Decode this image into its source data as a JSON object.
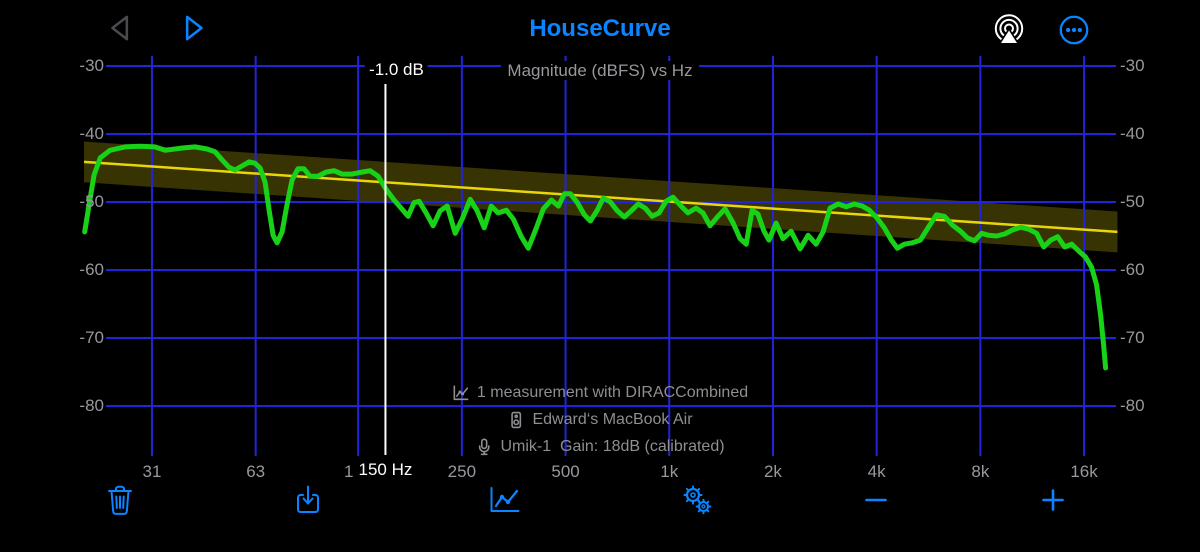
{
  "colors": {
    "accent": "#0a84ff",
    "grid": "#2323dc",
    "curve": "#18d218",
    "target": "#e8d60a",
    "band": "rgba(232,214,10,0.24)",
    "axisText": "#98989d",
    "annText": "#8e8e93",
    "cursor": "#ffffff",
    "disabled": "#4a4a4e"
  },
  "header": {
    "title": "HouseCurve",
    "left_buttons": [
      {
        "name": "previous",
        "icon": "back-triangle-icon",
        "enabled": false
      },
      {
        "name": "play",
        "icon": "play-triangle-icon",
        "enabled": true
      }
    ],
    "right_buttons": [
      {
        "name": "airplay",
        "icon": "airplay-audio-icon"
      },
      {
        "name": "more",
        "icon": "ellipsis-circle-icon"
      }
    ]
  },
  "chart": {
    "title": "Magnitude (dBFS) vs Hz",
    "cursor": {
      "hz": 150,
      "freq_label": "150 Hz",
      "value_label": "-1.0 dB"
    },
    "annotations": [
      {
        "icon": "line-chart-icon",
        "text": "1 measurement with DIRACCombined"
      },
      {
        "icon": "speaker-icon",
        "text": "Edward‘s MacBook Air"
      },
      {
        "icon": "microphone-icon",
        "text": "Umik-1  Gain: 18dB (calibrated)"
      }
    ]
  },
  "chart_data": {
    "type": "line",
    "title": "Magnitude (dBFS) vs Hz",
    "x_scale": "log",
    "x_range_hz": [
      20,
      20000
    ],
    "y_range_db": [
      -88,
      -28
    ],
    "grid": true,
    "y_ticks": [
      -30,
      -40,
      -50,
      -60,
      -70,
      -80
    ],
    "x_ticks": [
      {
        "f": 31.5,
        "label": "31"
      },
      {
        "f": 63,
        "label": "63"
      },
      {
        "f": 125,
        "label": "125"
      },
      {
        "f": 250,
        "label": "250"
      },
      {
        "f": 500,
        "label": "500"
      },
      {
        "f": 1000,
        "label": "1k"
      },
      {
        "f": 2000,
        "label": "2k"
      },
      {
        "f": 4000,
        "label": "4k"
      },
      {
        "f": 8000,
        "label": "8k"
      },
      {
        "f": 16000,
        "label": "16k"
      }
    ],
    "series": [
      {
        "name": "target",
        "color": "#e8d60a",
        "tolerance_db": 3,
        "points": [
          [
            20,
            -44.1
          ],
          [
            20000,
            -54.4
          ]
        ]
      },
      {
        "name": "measurement",
        "color": "#18d218",
        "points": [
          [
            20.1,
            -54.4
          ],
          [
            20.7,
            -50.4
          ],
          [
            21.4,
            -46.0
          ],
          [
            22.3,
            -43.5
          ],
          [
            23.8,
            -42.4
          ],
          [
            26.3,
            -41.9
          ],
          [
            29.1,
            -41.8
          ],
          [
            32.1,
            -41.9
          ],
          [
            34.4,
            -42.4
          ],
          [
            38.0,
            -42.1
          ],
          [
            42.0,
            -41.9
          ],
          [
            45.5,
            -42.2
          ],
          [
            48.0,
            -42.6
          ],
          [
            50.3,
            -43.8
          ],
          [
            52.7,
            -44.9
          ],
          [
            54.9,
            -45.3
          ],
          [
            57.5,
            -44.7
          ],
          [
            60.3,
            -44.1
          ],
          [
            62.7,
            -44.3
          ],
          [
            64.9,
            -45.0
          ],
          [
            67.1,
            -47.1
          ],
          [
            68.9,
            -51.2
          ],
          [
            70.8,
            -54.9
          ],
          [
            72.7,
            -56.0
          ],
          [
            75.2,
            -54.4
          ],
          [
            77.7,
            -50.4
          ],
          [
            80.3,
            -46.8
          ],
          [
            83.6,
            -45.1
          ],
          [
            87.0,
            -45.1
          ],
          [
            90.6,
            -46.2
          ],
          [
            95.6,
            -46.2
          ],
          [
            100.8,
            -45.6
          ],
          [
            106.4,
            -45.4
          ],
          [
            112.2,
            -45.9
          ],
          [
            120.0,
            -45.9
          ],
          [
            128.3,
            -45.6
          ],
          [
            135.4,
            -45.4
          ],
          [
            142.8,
            -46.2
          ],
          [
            150.6,
            -48.1
          ],
          [
            158.9,
            -49.7
          ],
          [
            166.5,
            -50.9
          ],
          [
            174.5,
            -52.1
          ],
          [
            181.6,
            -50.1
          ],
          [
            187.8,
            -49.9
          ],
          [
            196.8,
            -51.6
          ],
          [
            206.3,
            -53.5
          ],
          [
            216.2,
            -51.3
          ],
          [
            226.6,
            -50.6
          ],
          [
            239.1,
            -54.6
          ],
          [
            250.5,
            -52.5
          ],
          [
            264.4,
            -49.6
          ],
          [
            277.0,
            -51.3
          ],
          [
            290.3,
            -53.8
          ],
          [
            304.2,
            -50.6
          ],
          [
            318.8,
            -51.6
          ],
          [
            336.4,
            -51.2
          ],
          [
            352.5,
            -52.5
          ],
          [
            371.9,
            -55.1
          ],
          [
            389.8,
            -56.8
          ],
          [
            411.4,
            -53.8
          ],
          [
            431.1,
            -51.0
          ],
          [
            454.8,
            -49.7
          ],
          [
            476.6,
            -50.6
          ],
          [
            496.1,
            -48.8
          ],
          [
            516.4,
            -48.8
          ],
          [
            541.1,
            -50.1
          ],
          [
            566.9,
            -51.9
          ],
          [
            590.1,
            -52.8
          ],
          [
            618.2,
            -51.2
          ],
          [
            643.5,
            -49.4
          ],
          [
            674.5,
            -50.0
          ],
          [
            706.6,
            -51.3
          ],
          [
            740.2,
            -52.2
          ],
          [
            775.5,
            -51.3
          ],
          [
            812.4,
            -50.3
          ],
          [
            851.2,
            -50.9
          ],
          [
            891.7,
            -52.1
          ],
          [
            934.2,
            -51.6
          ],
          [
            978.7,
            -49.9
          ],
          [
            1025,
            -49.3
          ],
          [
            1082,
            -50.6
          ],
          [
            1133,
            -51.6
          ],
          [
            1196,
            -50.9
          ],
          [
            1253,
            -51.6
          ],
          [
            1313,
            -53.5
          ],
          [
            1385,
            -52.1
          ],
          [
            1452,
            -51.0
          ],
          [
            1533,
            -53.1
          ],
          [
            1606,
            -55.4
          ],
          [
            1672,
            -56.2
          ],
          [
            1740,
            -51.2
          ],
          [
            1810,
            -51.8
          ],
          [
            1884,
            -54.3
          ],
          [
            1948,
            -55.6
          ],
          [
            2042,
            -53.1
          ],
          [
            2139,
            -55.4
          ],
          [
            2257,
            -54.3
          ],
          [
            2397,
            -56.9
          ],
          [
            2529,
            -54.9
          ],
          [
            2668,
            -56.2
          ],
          [
            2797,
            -54.4
          ],
          [
            2930,
            -50.9
          ],
          [
            3092,
            -50.3
          ],
          [
            3262,
            -50.7
          ],
          [
            3443,
            -50.3
          ],
          [
            3632,
            -50.6
          ],
          [
            3808,
            -51.2
          ],
          [
            4017,
            -52.4
          ],
          [
            4210,
            -53.8
          ],
          [
            4413,
            -55.6
          ],
          [
            4594,
            -56.8
          ],
          [
            4815,
            -56.2
          ],
          [
            5079,
            -56.0
          ],
          [
            5358,
            -55.6
          ],
          [
            5652,
            -53.7
          ],
          [
            5962,
            -51.9
          ],
          [
            6290,
            -52.1
          ],
          [
            6641,
            -53.4
          ],
          [
            7006,
            -54.3
          ],
          [
            7340,
            -55.3
          ],
          [
            7693,
            -55.7
          ],
          [
            8062,
            -54.6
          ],
          [
            8450,
            -54.9
          ],
          [
            8916,
            -55.0
          ],
          [
            9405,
            -54.7
          ],
          [
            9927,
            -54.1
          ],
          [
            10472,
            -53.7
          ],
          [
            11046,
            -54.0
          ],
          [
            11651,
            -54.6
          ],
          [
            12213,
            -56.6
          ],
          [
            12800,
            -55.6
          ],
          [
            13407,
            -55.1
          ],
          [
            14053,
            -56.6
          ],
          [
            14726,
            -56.2
          ],
          [
            15432,
            -57.2
          ],
          [
            16166,
            -58.1
          ],
          [
            16829,
            -59.6
          ],
          [
            17398,
            -62.2
          ],
          [
            17870,
            -66.6
          ],
          [
            18230,
            -71.0
          ],
          [
            18474,
            -74.4
          ]
        ]
      }
    ]
  },
  "toolbar": {
    "buttons": [
      {
        "name": "delete",
        "icon": "trash-icon"
      },
      {
        "name": "export",
        "icon": "download-icon"
      },
      {
        "name": "charts",
        "icon": "line-chart-icon"
      },
      {
        "name": "settings",
        "icon": "gears-icon"
      },
      {
        "name": "zoom-out",
        "icon": "minus-icon"
      },
      {
        "name": "zoom-in",
        "icon": "plus-icon"
      }
    ]
  }
}
